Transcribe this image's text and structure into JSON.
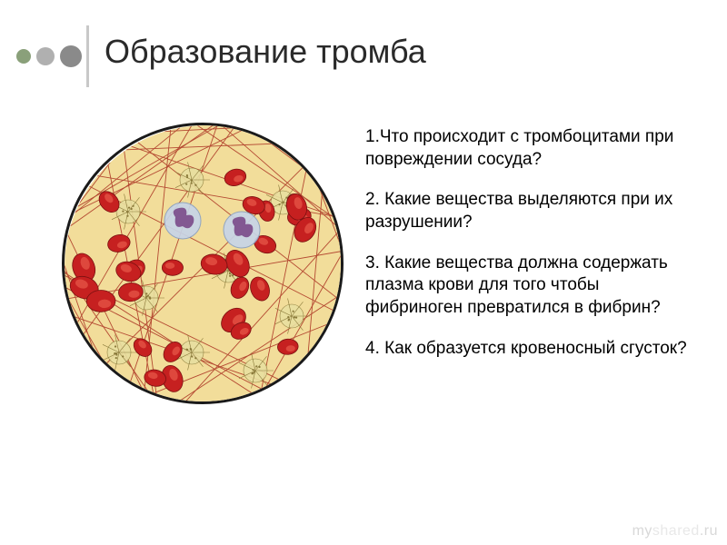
{
  "slide": {
    "title": "Образование тромба",
    "accent_bar_color": "#c8c8c8",
    "dots": [
      {
        "size": 16,
        "color": "#8aa07a"
      },
      {
        "size": 20,
        "color": "#b0b0b0"
      },
      {
        "size": 24,
        "color": "#8a8a8a"
      }
    ],
    "questions": [
      "1.Что происходит с тромбоцитами при повреждении сосуда?",
      "2. Какие вещества выделяются при их разрушении?",
      "3. Какие вещества должна содержать плазма крови для того чтобы фибриноген превратился в фибрин?",
      "4. Как образуется кровеносный сгусток?"
    ],
    "question_fontsize": 19,
    "question_color": "#000000"
  },
  "micrograph": {
    "diameter": 310,
    "background": "#f2dd9a",
    "border_color": "#1a1a1a",
    "border_width": 3,
    "fibrin_color": "#aa3020",
    "fibrin_width": 0.9,
    "rbc_fill": "#c62020",
    "rbc_highlight": "#e85a4a",
    "rbc_count": 28,
    "wbc_fill": "#c7d4e8",
    "wbc_nucleus": "#7a4a8a",
    "platelet_fill": "#e8dfa0",
    "platelet_border": "#8a7a3a"
  },
  "watermark": {
    "part1": "my",
    "part2": "shared",
    "part3": ".ru"
  }
}
